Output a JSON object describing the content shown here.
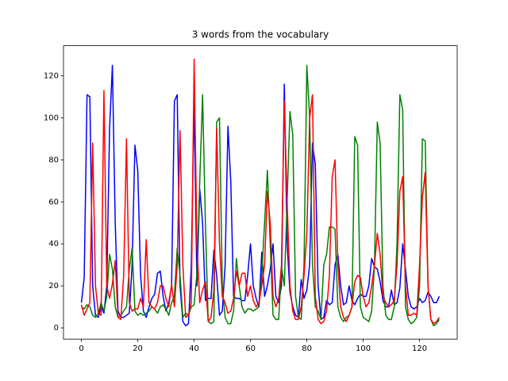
{
  "chart_data": {
    "type": "line",
    "title": "3 words from the vocabulary",
    "x": [
      0,
      1,
      2,
      3,
      4,
      5,
      6,
      7,
      8,
      9,
      10,
      11,
      12,
      13,
      14,
      15,
      16,
      17,
      18,
      19,
      20,
      21,
      22,
      23,
      24,
      25,
      26,
      27,
      28,
      29,
      30,
      31,
      32,
      33,
      34,
      35,
      36,
      37,
      38,
      39,
      40,
      41,
      42,
      43,
      44,
      45,
      46,
      47,
      48,
      49,
      50,
      51,
      52,
      53,
      54,
      55,
      56,
      57,
      58,
      59,
      60,
      61,
      62,
      63,
      64,
      65,
      66,
      67,
      68,
      69,
      70,
      71,
      72,
      73,
      74,
      75,
      76,
      77,
      78,
      79,
      80,
      81,
      82,
      83,
      84,
      85,
      86,
      87,
      88,
      89,
      90,
      91,
      92,
      93,
      94,
      95,
      96,
      97,
      98,
      99,
      100,
      101,
      102,
      103,
      104,
      105,
      106,
      107,
      108,
      109,
      110,
      111,
      112,
      113,
      114,
      115,
      116,
      117,
      118,
      119,
      120,
      121,
      122,
      123,
      124,
      125,
      126,
      127
    ],
    "series": [
      {
        "color": "#0000ff",
        "values": [
          12,
          24,
          111,
          110,
          20,
          6,
          5,
          10,
          7,
          20,
          95,
          125,
          50,
          8,
          5,
          5,
          6,
          7,
          30,
          87,
          75,
          25,
          8,
          5,
          10,
          14,
          16,
          26,
          27,
          15,
          8,
          12,
          20,
          108,
          111,
          20,
          3,
          1,
          2,
          30,
          108,
          20,
          66,
          50,
          13,
          14,
          14,
          37,
          25,
          6,
          8,
          30,
          96,
          70,
          15,
          14,
          14,
          13,
          13,
          25,
          40,
          20,
          14,
          10,
          36,
          15,
          20,
          28,
          40,
          15,
          12,
          20,
          116,
          40,
          17,
          10,
          6,
          5,
          23,
          14,
          18,
          30,
          88,
          78,
          20,
          4,
          5,
          13,
          11,
          12,
          30,
          35,
          20,
          11,
          12,
          20,
          13,
          11,
          14,
          16,
          15,
          15,
          20,
          33,
          29,
          28,
          22,
          13,
          10,
          10,
          18,
          11,
          12,
          19,
          40,
          28,
          15,
          10,
          9,
          10,
          14,
          12,
          13,
          17,
          15,
          12,
          12,
          15
        ]
      },
      {
        "color": "#008000",
        "values": [
          10,
          9,
          11,
          10,
          6,
          5,
          7,
          12,
          8,
          15,
          35,
          28,
          10,
          5,
          6,
          8,
          10,
          28,
          38,
          8,
          6,
          7,
          6,
          7,
          8,
          10,
          9,
          7,
          10,
          11,
          9,
          6,
          12,
          15,
          38,
          25,
          5,
          7,
          6,
          10,
          11,
          26,
          70,
          111,
          50,
          3,
          2,
          3,
          98,
          100,
          20,
          5,
          2,
          2,
          8,
          33,
          20,
          10,
          7,
          9,
          9,
          8,
          9,
          10,
          25,
          50,
          75,
          40,
          6,
          4,
          4,
          29,
          20,
          60,
          103,
          92,
          15,
          5,
          4,
          30,
          125,
          100,
          30,
          10,
          8,
          4,
          30,
          35,
          48,
          48,
          47,
          10,
          5,
          3,
          5,
          6,
          10,
          91,
          87,
          10,
          5,
          4,
          3,
          8,
          30,
          98,
          88,
          20,
          6,
          4,
          4,
          10,
          40,
          111,
          104,
          10,
          4,
          2,
          3,
          5,
          20,
          90,
          89,
          20,
          4,
          1,
          2,
          4
        ]
      },
      {
        "color": "#ff0000",
        "values": [
          11,
          6,
          9,
          12,
          88,
          20,
          7,
          6,
          113,
          20,
          14,
          21,
          32,
          5,
          4,
          25,
          90,
          12,
          8,
          9,
          9,
          14,
          10,
          42,
          12,
          10,
          9,
          12,
          20,
          20,
          14,
          10,
          21,
          10,
          30,
          94,
          30,
          5,
          6,
          12,
          128,
          40,
          12,
          18,
          22,
          3,
          5,
          18,
          95,
          40,
          15,
          12,
          7,
          8,
          14,
          27,
          20,
          26,
          26,
          15,
          20,
          13,
          10,
          12,
          20,
          30,
          65,
          50,
          15,
          10,
          14,
          30,
          108,
          60,
          20,
          8,
          4,
          4,
          10,
          25,
          45,
          100,
          111,
          15,
          4,
          2,
          3,
          8,
          25,
          72,
          80,
          30,
          10,
          5,
          3,
          6,
          10,
          22,
          25,
          24,
          15,
          10,
          12,
          20,
          30,
          45,
          35,
          15,
          12,
          10,
          11,
          13,
          30,
          65,
          72,
          20,
          6,
          6,
          7,
          6,
          30,
          62,
          74,
          20,
          4,
          2,
          3,
          5
        ]
      }
    ],
    "xlim": [
      -6.35,
      133.35
    ],
    "ylim": [
      -5.35,
      134.35
    ],
    "xticks": [
      0,
      20,
      40,
      60,
      80,
      100,
      120
    ],
    "yticks": [
      0,
      20,
      40,
      60,
      80,
      100,
      120
    ]
  }
}
